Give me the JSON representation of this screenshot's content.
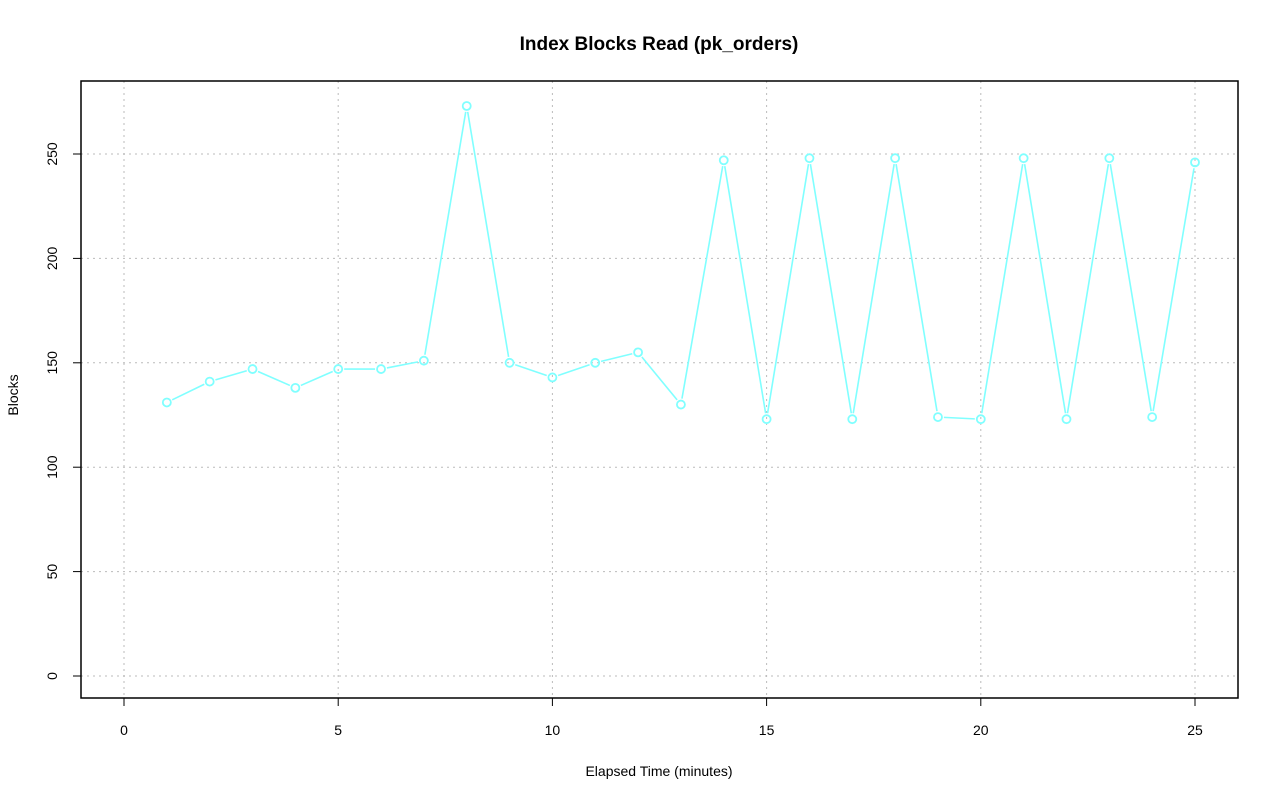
{
  "chart_data": {
    "type": "line",
    "title": "Index Blocks Read (pk_orders)",
    "xlabel": "Elapsed Time (minutes)",
    "ylabel": "Blocks",
    "xlim": [
      0,
      25
    ],
    "ylim": [
      0,
      250
    ],
    "x_ticks": [
      "0",
      "5",
      "10",
      "15",
      "20",
      "25"
    ],
    "y_ticks": [
      "0",
      "50",
      "100",
      "150",
      "200",
      "250"
    ],
    "grid": true,
    "markers": "open-circle",
    "color": "#80ffff",
    "x": [
      1,
      2,
      3,
      4,
      5,
      6,
      7,
      8,
      9,
      10,
      11,
      12,
      13,
      14,
      15,
      16,
      17,
      18,
      19,
      20,
      21,
      22,
      23,
      24,
      25
    ],
    "values": [
      131,
      141,
      147,
      138,
      147,
      147,
      151,
      273,
      150,
      143,
      150,
      155,
      130,
      247,
      123,
      248,
      123,
      248,
      124,
      123,
      248,
      123,
      248,
      124,
      246
    ]
  }
}
